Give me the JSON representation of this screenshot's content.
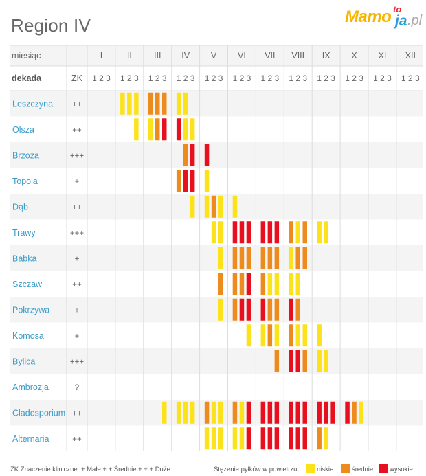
{
  "title": "Region IV",
  "logo": {
    "main": "Mamo",
    "to": "to",
    "ja": "ja",
    "pl": ".pl"
  },
  "colors": {
    "low": "#fce21b",
    "medium": "#ee8b1f",
    "high": "#e8101e",
    "label": "#3a9cc9",
    "text": "#666666",
    "grid": "#dddddd",
    "stripe": "#f4f4f4"
  },
  "chart_data": {
    "type": "heatmap",
    "row_header": "miesiąc",
    "sub_header": "dekada",
    "zk_header": "ZK",
    "months": [
      "I",
      "II",
      "III",
      "IV",
      "V",
      "VI",
      "VII",
      "VIII",
      "IX",
      "X",
      "XI",
      "XII"
    ],
    "decades": [
      "1",
      "2",
      "3"
    ],
    "levels": {
      "1": "niskie",
      "2": "średnie",
      "3": "wysokie"
    },
    "rows": [
      {
        "name": "Leszczyna",
        "zk": "++",
        "cells": [
          [
            0,
            0,
            0
          ],
          [
            1,
            1,
            1
          ],
          [
            2,
            2,
            2
          ],
          [
            1,
            1,
            0
          ],
          [
            0,
            0,
            0
          ],
          [
            0,
            0,
            0
          ],
          [
            0,
            0,
            0
          ],
          [
            0,
            0,
            0
          ],
          [
            0,
            0,
            0
          ],
          [
            0,
            0,
            0
          ],
          [
            0,
            0,
            0
          ],
          [
            0,
            0,
            0
          ]
        ]
      },
      {
        "name": "Olsza",
        "zk": "++",
        "cells": [
          [
            0,
            0,
            0
          ],
          [
            0,
            0,
            1
          ],
          [
            1,
            2,
            3
          ],
          [
            3,
            1,
            1
          ],
          [
            0,
            0,
            0
          ],
          [
            0,
            0,
            0
          ],
          [
            0,
            0,
            0
          ],
          [
            0,
            0,
            0
          ],
          [
            0,
            0,
            0
          ],
          [
            0,
            0,
            0
          ],
          [
            0,
            0,
            0
          ],
          [
            0,
            0,
            0
          ]
        ]
      },
      {
        "name": "Brzoza",
        "zk": "+++",
        "cells": [
          [
            0,
            0,
            0
          ],
          [
            0,
            0,
            0
          ],
          [
            0,
            0,
            0
          ],
          [
            0,
            2,
            3
          ],
          [
            3,
            0,
            0
          ],
          [
            0,
            0,
            0
          ],
          [
            0,
            0,
            0
          ],
          [
            0,
            0,
            0
          ],
          [
            0,
            0,
            0
          ],
          [
            0,
            0,
            0
          ],
          [
            0,
            0,
            0
          ],
          [
            0,
            0,
            0
          ]
        ]
      },
      {
        "name": "Topola",
        "zk": "+",
        "cells": [
          [
            0,
            0,
            0
          ],
          [
            0,
            0,
            0
          ],
          [
            0,
            0,
            0
          ],
          [
            2,
            3,
            3
          ],
          [
            1,
            0,
            0
          ],
          [
            0,
            0,
            0
          ],
          [
            0,
            0,
            0
          ],
          [
            0,
            0,
            0
          ],
          [
            0,
            0,
            0
          ],
          [
            0,
            0,
            0
          ],
          [
            0,
            0,
            0
          ],
          [
            0,
            0,
            0
          ]
        ]
      },
      {
        "name": "Dąb",
        "zk": "++",
        "cells": [
          [
            0,
            0,
            0
          ],
          [
            0,
            0,
            0
          ],
          [
            0,
            0,
            0
          ],
          [
            0,
            0,
            1
          ],
          [
            1,
            2,
            1
          ],
          [
            1,
            0,
            0
          ],
          [
            0,
            0,
            0
          ],
          [
            0,
            0,
            0
          ],
          [
            0,
            0,
            0
          ],
          [
            0,
            0,
            0
          ],
          [
            0,
            0,
            0
          ],
          [
            0,
            0,
            0
          ]
        ]
      },
      {
        "name": "Trawy",
        "zk": "+++",
        "cells": [
          [
            0,
            0,
            0
          ],
          [
            0,
            0,
            0
          ],
          [
            0,
            0,
            0
          ],
          [
            0,
            0,
            0
          ],
          [
            0,
            1,
            1
          ],
          [
            3,
            3,
            3
          ],
          [
            3,
            3,
            3
          ],
          [
            2,
            1,
            2
          ],
          [
            1,
            1,
            0
          ],
          [
            0,
            0,
            0
          ],
          [
            0,
            0,
            0
          ],
          [
            0,
            0,
            0
          ]
        ]
      },
      {
        "name": "Babka",
        "zk": "+",
        "cells": [
          [
            0,
            0,
            0
          ],
          [
            0,
            0,
            0
          ],
          [
            0,
            0,
            0
          ],
          [
            0,
            0,
            0
          ],
          [
            0,
            0,
            1
          ],
          [
            2,
            2,
            2
          ],
          [
            2,
            2,
            2
          ],
          [
            1,
            2,
            2
          ],
          [
            0,
            0,
            0
          ],
          [
            0,
            0,
            0
          ],
          [
            0,
            0,
            0
          ],
          [
            0,
            0,
            0
          ]
        ]
      },
      {
        "name": "Szczaw",
        "zk": "++",
        "cells": [
          [
            0,
            0,
            0
          ],
          [
            0,
            0,
            0
          ],
          [
            0,
            0,
            0
          ],
          [
            0,
            0,
            0
          ],
          [
            0,
            0,
            2
          ],
          [
            2,
            2,
            3
          ],
          [
            2,
            1,
            1
          ],
          [
            1,
            1,
            0
          ],
          [
            0,
            0,
            0
          ],
          [
            0,
            0,
            0
          ],
          [
            0,
            0,
            0
          ],
          [
            0,
            0,
            0
          ]
        ]
      },
      {
        "name": "Pokrzywa",
        "zk": "+",
        "cells": [
          [
            0,
            0,
            0
          ],
          [
            0,
            0,
            0
          ],
          [
            0,
            0,
            0
          ],
          [
            0,
            0,
            0
          ],
          [
            0,
            0,
            1
          ],
          [
            2,
            3,
            3
          ],
          [
            3,
            2,
            2
          ],
          [
            3,
            2,
            0
          ],
          [
            0,
            0,
            0
          ],
          [
            0,
            0,
            0
          ],
          [
            0,
            0,
            0
          ],
          [
            0,
            0,
            0
          ]
        ]
      },
      {
        "name": "Komosa",
        "zk": "+",
        "cells": [
          [
            0,
            0,
            0
          ],
          [
            0,
            0,
            0
          ],
          [
            0,
            0,
            0
          ],
          [
            0,
            0,
            0
          ],
          [
            0,
            0,
            0
          ],
          [
            0,
            0,
            1
          ],
          [
            1,
            2,
            1
          ],
          [
            2,
            1,
            1
          ],
          [
            1,
            0,
            0
          ],
          [
            0,
            0,
            0
          ],
          [
            0,
            0,
            0
          ],
          [
            0,
            0,
            0
          ]
        ]
      },
      {
        "name": "Bylica",
        "zk": "+++",
        "cells": [
          [
            0,
            0,
            0
          ],
          [
            0,
            0,
            0
          ],
          [
            0,
            0,
            0
          ],
          [
            0,
            0,
            0
          ],
          [
            0,
            0,
            0
          ],
          [
            0,
            0,
            0
          ],
          [
            0,
            0,
            2
          ],
          [
            3,
            3,
            2
          ],
          [
            1,
            1,
            0
          ],
          [
            0,
            0,
            0
          ],
          [
            0,
            0,
            0
          ],
          [
            0,
            0,
            0
          ]
        ]
      },
      {
        "name": "Ambrozja",
        "zk": "?",
        "cells": [
          [
            0,
            0,
            0
          ],
          [
            0,
            0,
            0
          ],
          [
            0,
            0,
            0
          ],
          [
            0,
            0,
            0
          ],
          [
            0,
            0,
            0
          ],
          [
            0,
            0,
            0
          ],
          [
            0,
            0,
            0
          ],
          [
            0,
            0,
            0
          ],
          [
            0,
            0,
            0
          ],
          [
            0,
            0,
            0
          ],
          [
            0,
            0,
            0
          ],
          [
            0,
            0,
            0
          ]
        ]
      },
      {
        "name": "Cladosporium",
        "zk": "++",
        "cells": [
          [
            0,
            0,
            0
          ],
          [
            0,
            0,
            0
          ],
          [
            0,
            0,
            1
          ],
          [
            1,
            1,
            1
          ],
          [
            2,
            1,
            1
          ],
          [
            2,
            1,
            3
          ],
          [
            3,
            3,
            3
          ],
          [
            3,
            3,
            3
          ],
          [
            3,
            3,
            3
          ],
          [
            3,
            2,
            1
          ],
          [
            0,
            0,
            0
          ],
          [
            0,
            0,
            0
          ]
        ]
      },
      {
        "name": "Alternaria",
        "zk": "++",
        "cells": [
          [
            0,
            0,
            0
          ],
          [
            0,
            0,
            0
          ],
          [
            0,
            0,
            0
          ],
          [
            0,
            0,
            0
          ],
          [
            1,
            1,
            1
          ],
          [
            1,
            1,
            3
          ],
          [
            3,
            3,
            3
          ],
          [
            3,
            3,
            3
          ],
          [
            2,
            1,
            0
          ],
          [
            0,
            0,
            0
          ],
          [
            0,
            0,
            0
          ],
          [
            0,
            0,
            0
          ]
        ]
      }
    ]
  },
  "legend": {
    "zk_text": "ZK  Znaczenie kliniczne:  +  Małe  + + Średnie  + + + Duże",
    "conc_text": "Stężenie pyłków w powietrzu:",
    "low": "niskie",
    "medium": "średnie",
    "high": "wysokie"
  }
}
